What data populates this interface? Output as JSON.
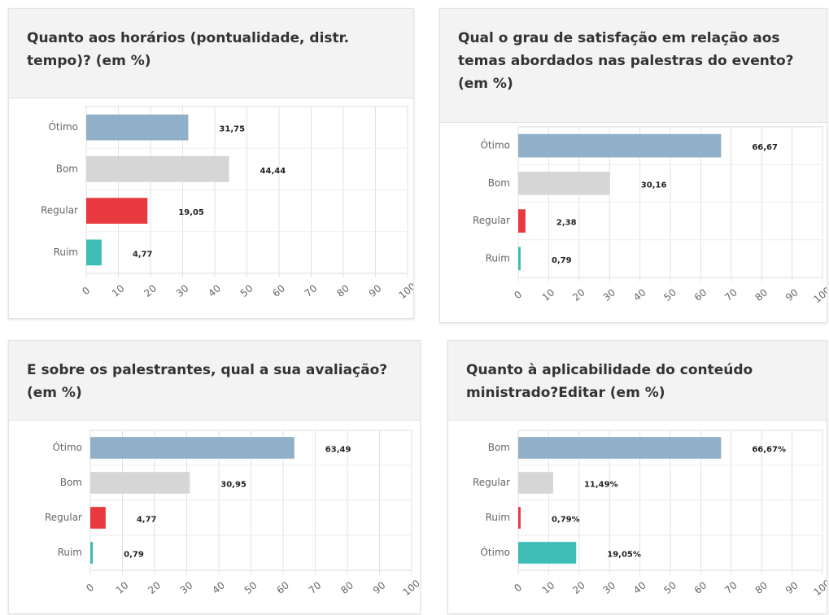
{
  "chart_data": [
    {
      "type": "bar",
      "title": "Quanto aos horários (pontualidade, distr. tempo)? (em %)",
      "categories": [
        "Ótimo",
        "Bom",
        "Regular",
        "Ruim"
      ],
      "values": [
        31.75,
        44.44,
        19.05,
        4.77
      ],
      "value_labels": [
        "31,75",
        "44,44",
        "19,05",
        "4,77"
      ],
      "colors": [
        "#8fb0c8",
        "#d6d6d6",
        "#e8393f",
        "#3dbdb5"
      ],
      "xlim": [
        0,
        100
      ],
      "xticks": [
        0,
        10,
        20,
        30,
        40,
        50,
        60,
        70,
        80,
        90,
        100
      ],
      "grid": true
    },
    {
      "type": "bar",
      "title": "Qual o grau de satisfação em relação aos temas abordados nas palestras do evento? (em %)",
      "categories": [
        "Ótimo",
        "Bom",
        "Regular",
        "Ruim"
      ],
      "values": [
        66.67,
        30.16,
        2.38,
        0.79
      ],
      "value_labels": [
        "66,67",
        "30,16",
        "2,38",
        "0,79"
      ],
      "colors": [
        "#8fb0c8",
        "#d6d6d6",
        "#e8393f",
        "#3dbdb5"
      ],
      "xlim": [
        0,
        100
      ],
      "xticks": [
        0,
        10,
        20,
        30,
        40,
        50,
        60,
        70,
        80,
        90,
        100
      ],
      "grid": true
    },
    {
      "type": "bar",
      "title": "E sobre os palestrantes, qual a sua avaliação? (em %)",
      "categories": [
        "Ótimo",
        "Bom",
        "Regular",
        "Ruim"
      ],
      "values": [
        63.49,
        30.95,
        4.77,
        0.79
      ],
      "value_labels": [
        "63,49",
        "30,95",
        "4,77",
        "0,79"
      ],
      "colors": [
        "#8fb0c8",
        "#d6d6d6",
        "#e8393f",
        "#3dbdb5"
      ],
      "xlim": [
        0,
        100
      ],
      "xticks": [
        0,
        10,
        20,
        30,
        40,
        50,
        60,
        70,
        80,
        90,
        100
      ],
      "grid": true
    },
    {
      "type": "bar",
      "title": "Quanto à aplicabilidade do conteúdo ministrado?Editar (em %)",
      "categories": [
        "Bom",
        "Regular",
        "Ruim",
        "Ótimo"
      ],
      "values": [
        66.67,
        11.49,
        0.79,
        19.05
      ],
      "value_labels": [
        "66,67%",
        "11,49%",
        "0,79%",
        "19,05%"
      ],
      "colors": [
        "#8fb0c8",
        "#d6d6d6",
        "#e8393f",
        "#3dbdb5"
      ],
      "xlim": [
        0,
        100
      ],
      "xticks": [
        0,
        10,
        20,
        30,
        40,
        50,
        60,
        70,
        80,
        90,
        100
      ],
      "grid": true
    }
  ]
}
